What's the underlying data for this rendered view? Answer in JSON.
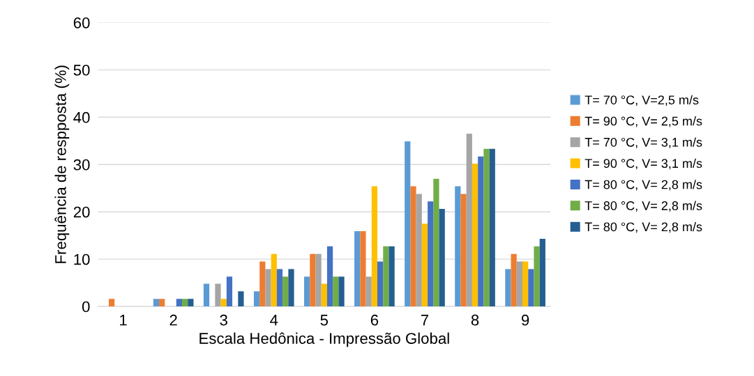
{
  "chart_data": {
    "type": "bar",
    "xlabel": "Escala Hedônica - Impressão Global",
    "ylabel": "Frequência de respposta (%)",
    "categories": [
      "1",
      "2",
      "3",
      "4",
      "5",
      "6",
      "7",
      "8",
      "9"
    ],
    "series": [
      {
        "name": "T= 70 °C, V=2,5 m/s",
        "color": "#5b9bd5",
        "values": [
          0,
          1.6,
          4.8,
          3.2,
          6.3,
          15.9,
          34.9,
          25.4,
          7.9
        ]
      },
      {
        "name": "T= 90 °C, V= 2,5 m/s",
        "color": "#ed7d31",
        "values": [
          1.6,
          1.6,
          0,
          9.5,
          11.1,
          15.9,
          25.4,
          23.8,
          11.1
        ]
      },
      {
        "name": "T= 70 °C, V= 3,1 m/s",
        "color": "#a5a5a5",
        "values": [
          0,
          0,
          4.8,
          7.9,
          11.1,
          6.3,
          23.8,
          36.5,
          9.5
        ]
      },
      {
        "name": "T= 90 °C, V= 3,1 m/s",
        "color": "#ffc000",
        "values": [
          0,
          0,
          1.6,
          11.1,
          4.8,
          25.4,
          17.5,
          30.2,
          9.5
        ]
      },
      {
        "name": "T= 80 °C, V= 2,8 m/s",
        "color": "#4472c4",
        "values": [
          0,
          1.6,
          6.3,
          7.9,
          12.7,
          9.5,
          22.2,
          31.7,
          7.9
        ]
      },
      {
        "name": "T= 80 °C, V= 2,8 m/s",
        "color": "#70ad47",
        "values": [
          0,
          1.6,
          0,
          6.3,
          6.3,
          12.7,
          27.0,
          33.3,
          12.7
        ]
      },
      {
        "name": "T= 80 °C, V= 2,8 m/s",
        "color": "#255e91",
        "values": [
          0,
          1.6,
          3.2,
          7.9,
          6.3,
          12.7,
          20.6,
          33.3,
          14.3
        ]
      }
    ],
    "ylim": [
      0,
      60
    ],
    "yticks": [
      0,
      10,
      20,
      30,
      40,
      50,
      60
    ],
    "grid": "y",
    "legend": "right"
  }
}
